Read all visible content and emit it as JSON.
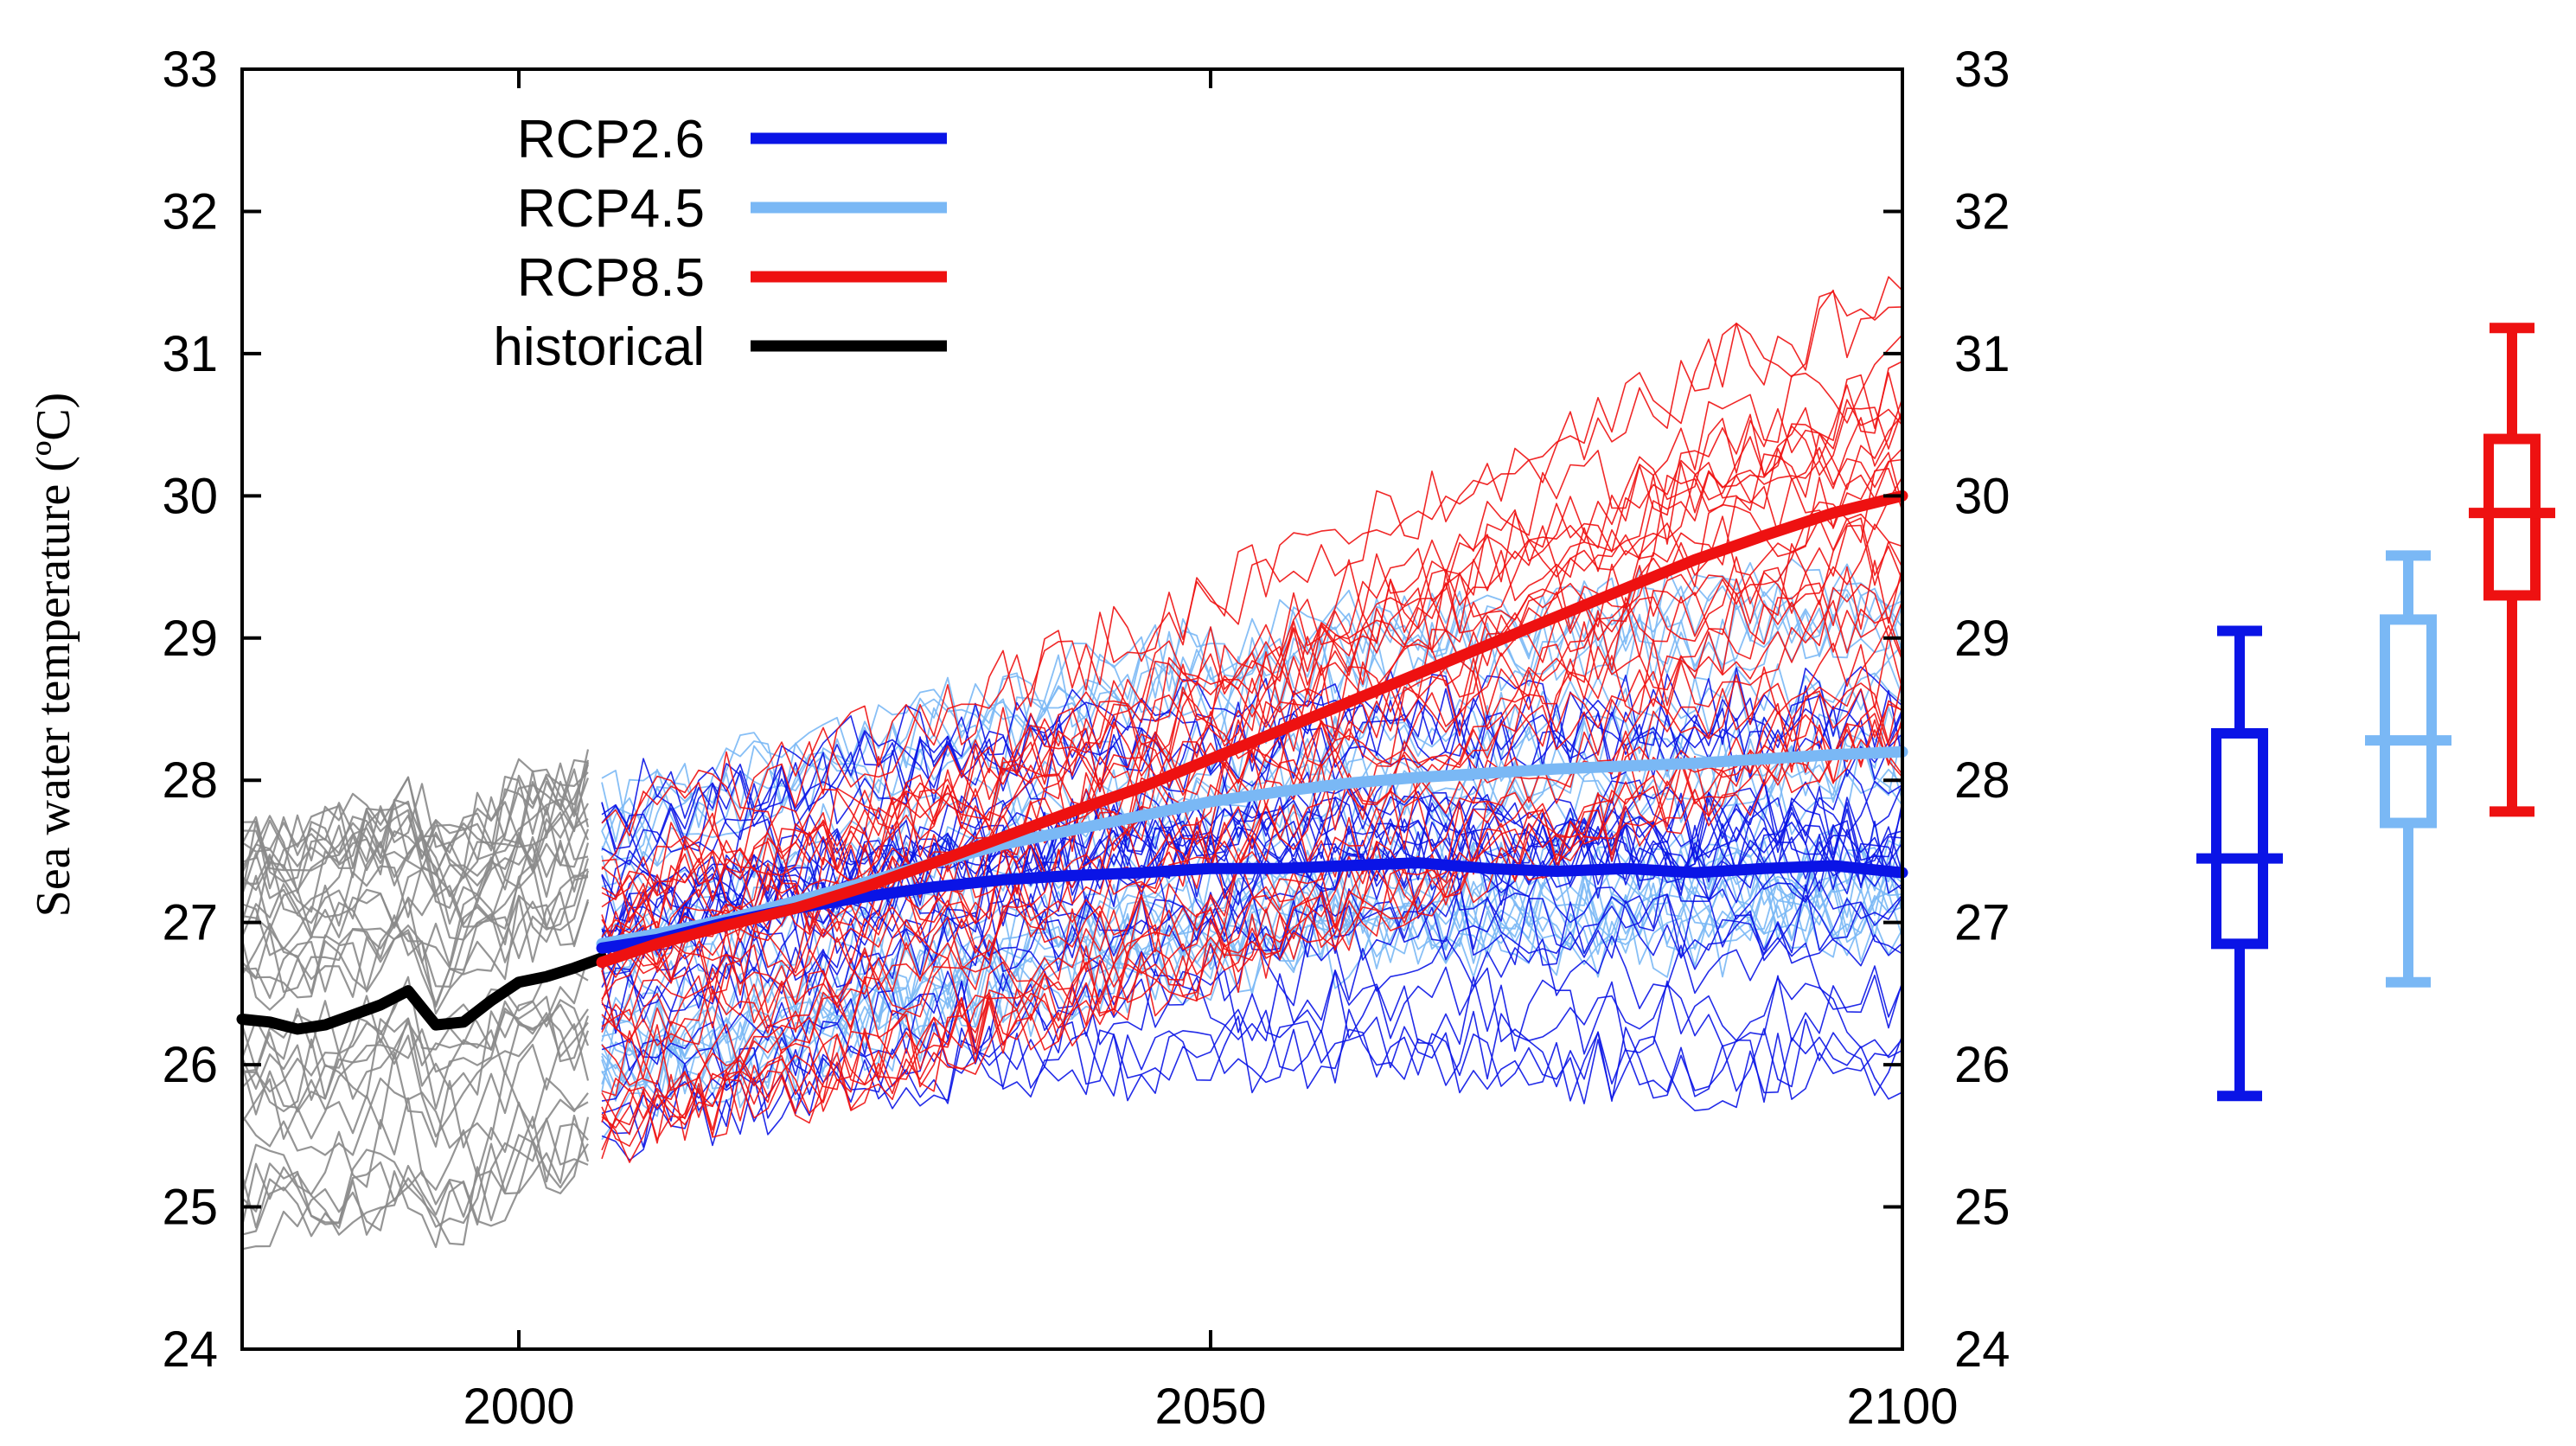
{
  "chart_data": {
    "type": "line",
    "title": "",
    "ylabel": "Sea water temperature (ºC)",
    "xlabel": "",
    "xlim": [
      1980,
      2100
    ],
    "ylim": [
      24,
      33
    ],
    "x_ticks": [
      "2000",
      "2050",
      "2100"
    ],
    "y_ticks": [
      "24",
      "25",
      "26",
      "27",
      "28",
      "29",
      "30",
      "31",
      "32",
      "33"
    ],
    "grid": false,
    "legend_position": "top-left",
    "legend": [
      {
        "label": "RCP2.6",
        "color": "#0a14e6"
      },
      {
        "label": "RCP4.5",
        "color": "#7ab8f5"
      },
      {
        "label": "RCP8.5",
        "color": "#ee1111"
      },
      {
        "label": "historical",
        "color": "#000000"
      }
    ],
    "colors": {
      "rcp26": "#0a14e6",
      "rcp45": "#7ab8f5",
      "rcp85": "#ee1111",
      "historical": "#000000",
      "historical_members": "#8a8a8a"
    },
    "series": [
      {
        "name": "historical",
        "x": [
          1980,
          1982,
          1984,
          1986,
          1988,
          1990,
          1992,
          1994,
          1996,
          1998,
          2000,
          2002,
          2004,
          2006
        ],
        "values": [
          26.32,
          26.3,
          26.25,
          26.28,
          26.35,
          26.42,
          26.52,
          26.28,
          26.3,
          26.45,
          26.58,
          26.62,
          26.68,
          26.75
        ]
      },
      {
        "name": "RCP2.6",
        "x": [
          2006,
          2010,
          2015,
          2020,
          2025,
          2030,
          2035,
          2040,
          2045,
          2050,
          2055,
          2060,
          2065,
          2070,
          2075,
          2080,
          2085,
          2090,
          2095,
          2100
        ],
        "values": [
          26.82,
          26.88,
          27.0,
          27.1,
          27.18,
          27.25,
          27.3,
          27.33,
          27.35,
          27.38,
          27.38,
          27.4,
          27.42,
          27.38,
          27.36,
          27.38,
          27.35,
          27.38,
          27.4,
          27.35
        ]
      },
      {
        "name": "RCP4.5",
        "x": [
          2006,
          2010,
          2015,
          2020,
          2025,
          2030,
          2035,
          2040,
          2045,
          2050,
          2055,
          2060,
          2065,
          2070,
          2075,
          2080,
          2085,
          2090,
          2095,
          2100
        ],
        "values": [
          26.85,
          26.92,
          27.02,
          27.15,
          27.28,
          27.42,
          27.55,
          27.65,
          27.75,
          27.85,
          27.92,
          27.98,
          28.02,
          28.05,
          28.08,
          28.1,
          28.12,
          28.15,
          28.18,
          28.2
        ]
      },
      {
        "name": "RCP8.5",
        "x": [
          2006,
          2010,
          2015,
          2020,
          2025,
          2030,
          2035,
          2040,
          2045,
          2050,
          2055,
          2060,
          2065,
          2070,
          2075,
          2080,
          2085,
          2090,
          2095,
          2100
        ],
        "values": [
          26.72,
          26.85,
          26.98,
          27.1,
          27.25,
          27.42,
          27.6,
          27.78,
          27.95,
          28.15,
          28.35,
          28.55,
          28.75,
          28.95,
          29.15,
          29.35,
          29.55,
          29.72,
          29.88,
          30.0
        ]
      }
    ],
    "boxplots": [
      {
        "name": "RCP2.6",
        "min": 25.78,
        "q1": 26.85,
        "median": 27.45,
        "q3": 28.33,
        "max": 29.05
      },
      {
        "name": "RCP4.5",
        "min": 26.58,
        "q1": 27.7,
        "median": 28.28,
        "q3": 29.13,
        "max": 29.58
      },
      {
        "name": "RCP8.5",
        "min": 27.78,
        "q1": 29.3,
        "median": 29.88,
        "q3": 30.4,
        "max": 31.18
      }
    ]
  }
}
